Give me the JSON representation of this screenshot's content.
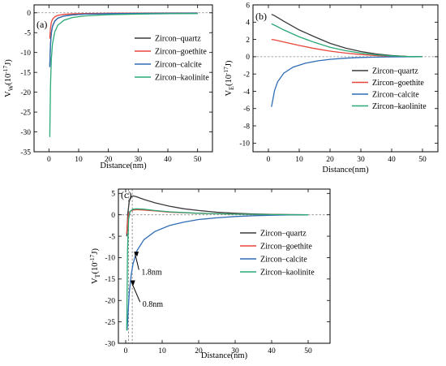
{
  "chart_data": [
    {
      "type": "line",
      "panel_label": "(a)",
      "xlabel": "Distance(nm)",
      "ylabel": {
        "base": "V",
        "sub": "W",
        "unit": "(10",
        "exp": "-17",
        "tail": "J)"
      },
      "xlim": [
        -5,
        55
      ],
      "ylim": [
        -35,
        2
      ],
      "xticks": [
        0,
        10,
        20,
        30,
        40,
        50
      ],
      "yticks": [
        -35,
        -30,
        -25,
        -20,
        -15,
        -10,
        -5,
        0
      ],
      "grid": false,
      "zero_line": true,
      "legend_position": "upper-right",
      "series": [
        {
          "name": "Zircon–quartz",
          "color": "#3a3a3a",
          "x": [
            0.3,
            0.5,
            0.8,
            1.2,
            2,
            3,
            5,
            8,
            12,
            20,
            30,
            40,
            50
          ],
          "y": [
            -13.5,
            -8.1,
            -5.06,
            -3.38,
            -2.03,
            -1.35,
            -0.81,
            -0.51,
            -0.34,
            -0.2,
            -0.14,
            -0.1,
            -0.08
          ]
        },
        {
          "name": "Zircon–goethite",
          "color": "#e8453c",
          "x": [
            0.3,
            0.5,
            0.8,
            1.2,
            2,
            3,
            5,
            8,
            12,
            20,
            30,
            40,
            50
          ],
          "y": [
            -6.5,
            -3.9,
            -2.44,
            -1.63,
            -0.98,
            -0.65,
            -0.39,
            -0.24,
            -0.16,
            -0.1,
            -0.07,
            -0.05,
            -0.04
          ]
        },
        {
          "name": "Zircon–calcite",
          "color": "#2f6db5",
          "x": [
            0.3,
            0.5,
            0.8,
            1.2,
            2,
            3,
            5,
            8,
            12,
            20,
            30,
            40,
            50
          ],
          "y": [
            -13.7,
            -8.22,
            -5.14,
            -3.43,
            -2.06,
            -1.37,
            -0.82,
            -0.51,
            -0.34,
            -0.21,
            -0.14,
            -0.1,
            -0.08
          ]
        },
        {
          "name": "Zircon–kaolinite",
          "color": "#2aa876",
          "x": [
            0.3,
            0.5,
            0.8,
            1.2,
            2,
            3,
            5,
            8,
            12,
            20,
            30,
            40,
            50
          ],
          "y": [
            -31.3,
            -18.8,
            -11.74,
            -7.83,
            -4.7,
            -3.13,
            -1.88,
            -1.17,
            -0.78,
            -0.47,
            -0.31,
            -0.23,
            -0.19
          ]
        }
      ]
    },
    {
      "type": "line",
      "panel_label": "(b)",
      "xlabel": "Distance(nm)",
      "ylabel": {
        "base": "V",
        "sub": "E",
        "unit": "(10",
        "exp": "-17",
        "tail": "J)"
      },
      "xlim": [
        -5,
        55
      ],
      "ylim": [
        -11,
        6
      ],
      "xticks": [
        0,
        10,
        20,
        30,
        40,
        50
      ],
      "yticks": [
        -10,
        -8,
        -6,
        -4,
        -2,
        0,
        2,
        4,
        6
      ],
      "grid": false,
      "zero_line": true,
      "legend_position": "lower-right",
      "series": [
        {
          "name": "Zircon–quartz",
          "color": "#3a3a3a",
          "x": [
            1,
            2,
            5,
            10,
            15,
            20,
            25,
            30,
            35,
            40,
            45,
            50
          ],
          "y": [
            4.9,
            4.75,
            4.1,
            3.1,
            2.3,
            1.55,
            1.0,
            0.6,
            0.32,
            0.14,
            0.04,
            0.0
          ]
        },
        {
          "name": "Zircon–goethite",
          "color": "#e8453c",
          "x": [
            1,
            2,
            5,
            10,
            15,
            20,
            25,
            30,
            35,
            40,
            45,
            50
          ],
          "y": [
            2.0,
            1.95,
            1.7,
            1.3,
            0.95,
            0.65,
            0.42,
            0.25,
            0.13,
            0.06,
            0.02,
            0.0
          ]
        },
        {
          "name": "Zircon–calcite",
          "color": "#2f6db5",
          "x": [
            1,
            2,
            3,
            5,
            8,
            12,
            16,
            20,
            25,
            30,
            35,
            40,
            45,
            50
          ],
          "y": [
            -5.8,
            -3.9,
            -2.9,
            -1.9,
            -1.2,
            -0.75,
            -0.48,
            -0.3,
            -0.17,
            -0.09,
            -0.05,
            -0.02,
            -0.01,
            0.0
          ]
        },
        {
          "name": "Zircon–kaolinite",
          "color": "#2aa876",
          "x": [
            1,
            2,
            5,
            10,
            15,
            20,
            25,
            30,
            35,
            40,
            45,
            50
          ],
          "y": [
            3.8,
            3.65,
            3.1,
            2.3,
            1.65,
            1.1,
            0.7,
            0.42,
            0.22,
            0.1,
            0.03,
            0.0
          ]
        }
      ]
    },
    {
      "type": "line",
      "panel_label": "(c)",
      "xlabel": "Distance(nm)",
      "ylabel": {
        "base": "V",
        "sub": "T",
        "unit": "(10",
        "exp": "-17",
        "tail": "J)"
      },
      "xlim": [
        -2,
        56
      ],
      "ylim": [
        -30,
        6
      ],
      "xticks": [
        0,
        10,
        20,
        30,
        40,
        50
      ],
      "yticks": [
        -30,
        -25,
        -20,
        -15,
        -10,
        -5,
        0,
        5
      ],
      "grid": false,
      "zero_line": true,
      "legend_position": "right",
      "vlines": [
        0.8,
        1.8
      ],
      "annotations": [
        {
          "text": "1.8nm",
          "x": 4.3,
          "y": -14.0
        },
        {
          "text": "0.8nm",
          "x": 4.6,
          "y": -21.5
        }
      ],
      "series": [
        {
          "name": "Zircon–quartz",
          "color": "#3a3a3a",
          "x": [
            0.3,
            0.6,
            1.0,
            1.5,
            2,
            3,
            5,
            8,
            12,
            16,
            20,
            25,
            30,
            35,
            40,
            45,
            50
          ],
          "y": [
            -5.0,
            0.5,
            3.2,
            4.2,
            4.4,
            4.2,
            3.6,
            2.8,
            2.0,
            1.4,
            1.0,
            0.6,
            0.35,
            0.18,
            0.08,
            0.03,
            0.0
          ]
        },
        {
          "name": "Zircon–goethite",
          "color": "#e8453c",
          "x": [
            0.3,
            0.5,
            0.8,
            1.2,
            2,
            3,
            5,
            8,
            12,
            20,
            30,
            40,
            50
          ],
          "y": [
            -4.4,
            -1.5,
            0.2,
            0.8,
            1.1,
            1.2,
            1.1,
            0.9,
            0.6,
            0.35,
            0.15,
            0.05,
            0.0
          ]
        },
        {
          "name": "Zircon–calcite",
          "color": "#2f6db5",
          "x": [
            0.4,
            0.7,
            1.0,
            1.5,
            2,
            3,
            5,
            8,
            12,
            16,
            20,
            25,
            30,
            35,
            40,
            45,
            50
          ],
          "y": [
            -27.0,
            -22.0,
            -18.0,
            -14.0,
            -11.5,
            -8.5,
            -5.8,
            -3.9,
            -2.5,
            -1.7,
            -1.1,
            -0.7,
            -0.4,
            -0.22,
            -0.1,
            -0.04,
            0.0
          ]
        },
        {
          "name": "Zircon–kaolinite",
          "color": "#2aa876",
          "x": [
            0.3,
            0.5,
            0.8,
            1.2,
            2,
            3,
            5,
            8,
            12,
            20,
            30,
            40,
            50
          ],
          "y": [
            -27.0,
            -8.0,
            -1.0,
            0.8,
            1.3,
            1.4,
            1.3,
            1.0,
            0.7,
            0.35,
            0.15,
            0.05,
            0.0
          ]
        }
      ]
    }
  ]
}
